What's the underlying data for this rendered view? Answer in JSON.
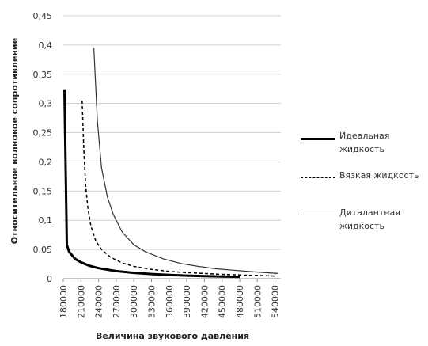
{
  "chart_data": {
    "type": "line",
    "title": "",
    "xlabel": "Величина звукового давления",
    "ylabel": "Относительное волновое сопротивление",
    "xlim": [
      180000,
      550000
    ],
    "ylim": [
      0,
      0.45
    ],
    "x_ticks": [
      180000,
      210000,
      240000,
      270000,
      300000,
      330000,
      360000,
      390000,
      420000,
      450000,
      480000,
      510000,
      540000
    ],
    "y_ticks": [
      0,
      0.05,
      0.1,
      0.15,
      0.2,
      0.25,
      0.3,
      0.35,
      0.4,
      0.45
    ],
    "y_tick_labels": [
      "0",
      "0,05",
      "0,1",
      "0,15",
      "0,2",
      "0,25",
      "0,3",
      "0,35",
      "0,4",
      "0,45"
    ],
    "grid": "horizontal",
    "legend_position": "right",
    "series": [
      {
        "name": "Идеальная\nжидкость",
        "style": "thick-solid",
        "color": "#000000",
        "x": [
          182000,
          186000,
          190000,
          200000,
          210000,
          225000,
          240000,
          270000,
          300000,
          330000,
          360000,
          390000,
          420000,
          450000,
          480000
        ],
        "y": [
          0.323,
          0.058,
          0.046,
          0.034,
          0.028,
          0.022,
          0.018,
          0.013,
          0.01,
          0.008,
          0.0065,
          0.0053,
          0.0045,
          0.0038,
          0.0032
        ]
      },
      {
        "name": "Вязкая жидкость",
        "style": "dashed",
        "color": "#000000",
        "x": [
          212000,
          215000,
          218000,
          222000,
          227000,
          235000,
          245000,
          260000,
          280000,
          300000,
          330000,
          360000,
          390000,
          420000,
          450000,
          480000,
          510000,
          540000
        ],
        "y": [
          0.305,
          0.22,
          0.16,
          0.12,
          0.09,
          0.065,
          0.05,
          0.037,
          0.027,
          0.021,
          0.016,
          0.0125,
          0.0105,
          0.009,
          0.0075,
          0.0065,
          0.0055,
          0.0045
        ]
      },
      {
        "name": "Диталантная\nжидкость",
        "style": "thin-solid",
        "color": "#333333",
        "x": [
          232000,
          238000,
          245000,
          255000,
          265000,
          280000,
          300000,
          320000,
          350000,
          380000,
          410000,
          440000,
          470000,
          500000,
          530000,
          545000
        ],
        "y": [
          0.395,
          0.27,
          0.19,
          0.14,
          0.11,
          0.08,
          0.058,
          0.046,
          0.034,
          0.026,
          0.021,
          0.017,
          0.0145,
          0.012,
          0.01,
          0.009
        ]
      }
    ]
  }
}
